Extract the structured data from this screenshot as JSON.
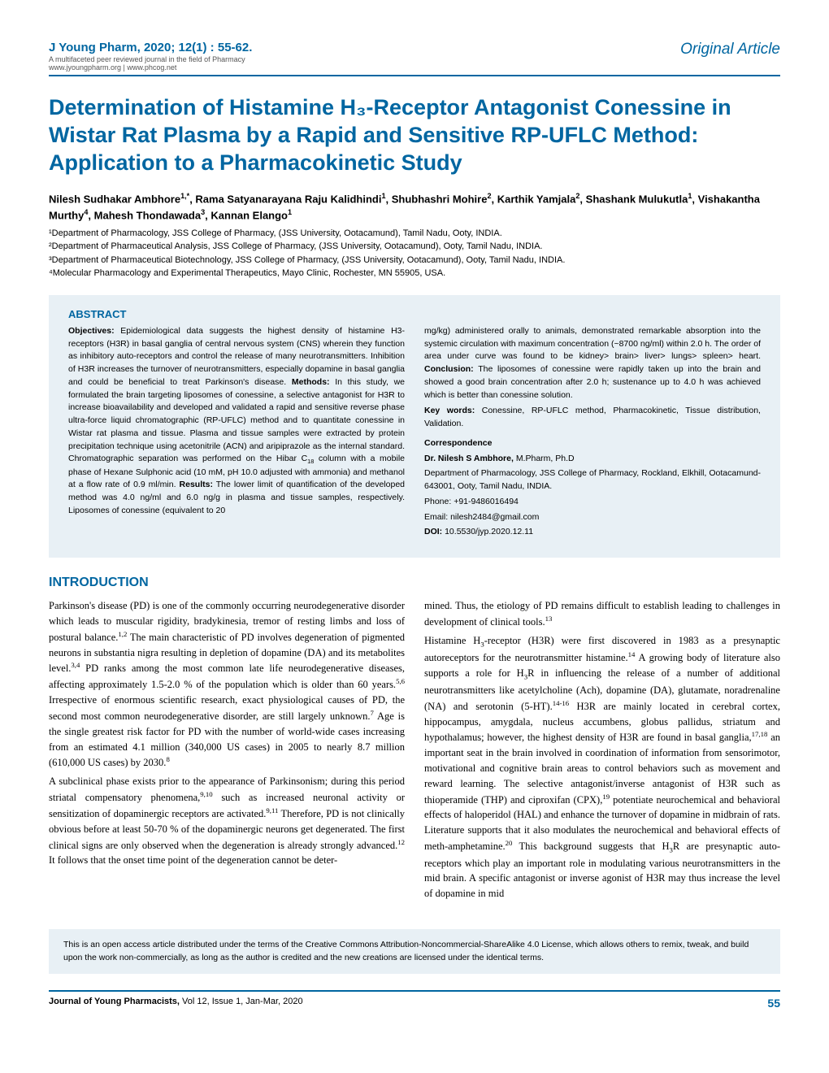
{
  "header": {
    "citation": "J Young Pharm, 2020; 12(1) : 55-62.",
    "tagline": "A multifaceted peer reviewed journal in the field of Pharmacy",
    "urls": "www.jyoungpharm.org | www.phcog.net",
    "article_type": "Original Article"
  },
  "title": "Determination of Histamine H₃-Receptor Antagonist Conessine in Wistar Rat Plasma by a Rapid and Sensitive RP-UFLC Method: Application to a Pharmacokinetic Study",
  "authors_html": "Nilesh Sudhakar Ambhore<span class='sup'>1,*</span>, Rama Satyanarayana Raju Kalidhindi<span class='sup'>1</span>, Shubhashri Mohire<span class='sup'>2</span>, Karthik Yamjala<span class='sup'>2</span>, Shashank Mulukutla<span class='sup'>1</span>, Vishakantha Murthy<span class='sup'>4</span>, Mahesh Thondawada<span class='sup'>3</span>, Kannan Elango<span class='sup'>1</span>",
  "affiliations": [
    "¹Department of Pharmacology, JSS College of Pharmacy, (JSS University, Ootacamund), Tamil Nadu, Ooty, INDIA.",
    "²Department of Pharmaceutical Analysis, JSS College of Pharmacy, (JSS University, Ootacamund), Ooty, Tamil Nadu, INDIA.",
    "³Department of Pharmaceutical Biotechnology, JSS College of Pharmacy, (JSS University, Ootacamund), Ooty, Tamil Nadu, INDIA.",
    "⁴Molecular Pharmacology and Experimental Therapeutics, Mayo Clinic, Rochester, MN 55905, USA."
  ],
  "abstract": {
    "heading": "ABSTRACT",
    "left": "<b>Objectives:</b> Epidemiological data suggests the highest density of histamine H3-receptors (H3R) in basal ganglia of central nervous system (CNS) wherein they function as inhibitory auto-receptors and control the release of many neurotransmitters. Inhibition of H3R increases the turnover of neurotransmitters, especially dopamine in basal ganglia and could be beneficial to treat Parkinson's disease. <b>Methods:</b> In this study, we formulated the brain targeting liposomes of conessine, a selective antagonist for H3R to increase bioavailability and developed and validated a rapid and sensitive reverse phase ultra-force liquid chromatographic (RP-UFLC) method and to quantitate conessine in Wistar rat plasma and tissue. Plasma and tissue samples were extracted by protein precipitation technique using acetonitrile (ACN) and aripiprazole as the internal standard. Chromatographic separation was performed on the Hibar C<span class='sub2'>18</span> column with a mobile phase of Hexane Sulphonic acid (10 mM, pH 10.0 adjusted with ammonia) and methanol at a flow rate of 0.9 ml/min. <b>Results:</b> The lower limit of quantification of the developed method was 4.0 ng/ml and 6.0 ng/g in plasma and tissue samples, respectively. Liposomes of conessine (equivalent to 20",
    "right_top": "mg/kg) administered orally to animals, demonstrated remarkable absorption into the systemic circulation with maximum concentration (~8700 ng/ml) within 2.0 h. The order of area under curve was found to be kidney> brain> liver> lungs> spleen> heart. <b>Conclusion:</b> The liposomes of conessine were rapidly taken up into the brain and showed a good brain concentration after 2.0 h; sustenance up to 4.0 h was achieved which is better than conessine solution.",
    "keywords": "<b>Key words:</b> Conessine, RP-UFLC method, Pharmacokinetic, Tissue distribution, Validation.",
    "correspondence": {
      "heading": "Correspondence",
      "name": "Dr. Nilesh S Ambhore,",
      "credentials": "M.Pharm, Ph.D",
      "address": "Department of Pharmacology, JSS College of Pharmacy, Rockland, Elkhill, Ootacamund-643001, Ooty, Tamil Nadu, INDIA.",
      "phone": "Phone: +91-9486016494",
      "email": "Email: nilesh2484@gmail.com",
      "doi": "DOI: 10.5530/jyp.2020.12.11"
    }
  },
  "intro": {
    "heading": "INTRODUCTION",
    "left_p1": "Parkinson's disease (PD) is one of the commonly occurring neurodegenerative disorder which leads to muscular rigidity, bradykinesia, tremor of resting limbs and loss of postural balance.<span class='sup2'>1,2</span> The main characteristic of PD involves degeneration of pigmented neurons in substantia nigra resulting in depletion of dopamine (DA) and its metabolites level.<span class='sup2'>3,4</span> PD ranks among the most common late life neurodegenerative diseases, affecting approximately 1.5-2.0 % of the population which is older than 60 years.<span class='sup2'>5,6</span> Irrespective of enormous scientific research, exact physiological causes of PD, the second most common neurodegenerative disorder, are still largely unknown.<span class='sup2'>7</span> Age is the single greatest risk factor for PD with the number of world-wide cases increasing from an estimated 4.1 million (340,000 US cases) in 2005 to nearly 8.7 million (610,000 US cases) by 2030.<span class='sup2'>8</span>",
    "left_p2": "A subclinical phase exists prior to the appearance of Parkinsonism; during this period striatal compensatory phenomena,<span class='sup2'>9,10</span> such as increased neuronal activity or sensitization of dopaminergic receptors are activated.<span class='sup2'>9,11</span> Therefore, PD is not clinically obvious before at least 50-70 % of the dopaminergic neurons get degenerated. The first clinical signs are only observed when the degeneration is already strongly advanced.<span class='sup2'>12</span> It follows that the onset time point of the degeneration cannot be deter-",
    "right_p1": "mined. Thus, the etiology of PD remains difficult to establish leading to challenges in development of clinical tools.<span class='sup2'>13</span>",
    "right_p2": "Histamine H<span class='sub2'>3</span>-receptor (H3R) were first discovered in 1983 as a presynaptic autoreceptors for the neurotransmitter histamine.<span class='sup2'>14</span> A growing body of literature also supports a role for H<span class='sub2'>3</span>R in influencing the release of a number of additional neurotransmitters like acetylcholine (Ach), dopamine (DA), glutamate, noradrenaline (NA) and serotonin (5-HT).<span class='sup2'>14-16</span> H3R are mainly located in cerebral cortex, hippocampus, amygdala, nucleus accumbens, globus pallidus, striatum and hypothalamus; however, the highest density of H3R are found in basal ganglia,<span class='sup2'>17,18</span> an important seat in the brain involved in coordination of information from sensorimotor, motivational and cognitive brain areas to control behaviors such as movement and reward learning. The selective antagonist/inverse antagonist of H3R such as thioperamide (THP) and ciproxifan (CPX),<span class='sup2'>19</span> potentiate neurochemical and behavioral effects of haloperidol (HAL) and enhance the turnover of dopamine in midbrain of rats. Literature supports that it also modulates the neurochemical and behavioral effects of meth-amphetamine.<span class='sup2'>20</span> This background suggests that H<span class='sub2'>3</span>R are presynaptic auto-receptors which play an important role in modulating various neurotransmitters in the mid brain. A specific antagonist or inverse agonist of H3R may thus increase the level of dopamine in mid"
  },
  "license": "This is an open access article distributed under the terms of the Creative Commons Attribution-Noncommercial-ShareAlike 4.0 License, which allows others to remix, tweak, and build upon the work non-commercially, as long as the author is credited and the new creations are licensed under the identical terms.",
  "footer": {
    "left_bold": "Journal of Young Pharmacists,",
    "left_rest": " Vol 12, Issue 1, Jan-Mar, 2020",
    "page": "55"
  },
  "colors": {
    "accent": "#0066a1",
    "abstract_bg": "#e8f0f5"
  }
}
